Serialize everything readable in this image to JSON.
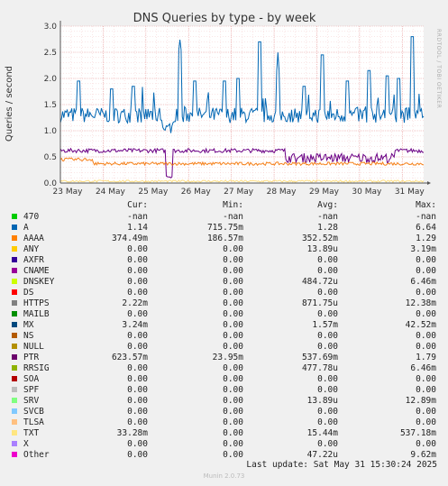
{
  "chart_data": {
    "type": "line",
    "title": "DNS Queries by type - by week",
    "ylabel": "Queries / second",
    "ylim": [
      0,
      3.0
    ],
    "yticks": [
      "0.0",
      "0.5",
      "1.0",
      "1.5",
      "2.0",
      "2.5",
      "3.0"
    ],
    "ytick_values": [
      0,
      0.5,
      1.0,
      1.5,
      2.0,
      2.5,
      3.0
    ],
    "x_categories": [
      "23 May",
      "24 May",
      "25 May",
      "26 May",
      "27 May",
      "28 May",
      "29 May",
      "30 May",
      "31 May"
    ],
    "grid": true,
    "series": [
      {
        "name": "A",
        "color": "#0066b3",
        "baseline": 1.3,
        "noise": 0.15,
        "spikes": [
          [
            0.05,
            1.95
          ],
          [
            0.14,
            1.8
          ],
          [
            0.2,
            1.85
          ],
          [
            0.33,
            2.55
          ],
          [
            0.37,
            1.95
          ],
          [
            0.45,
            1.95
          ],
          [
            0.49,
            2.0
          ],
          [
            0.55,
            2.7
          ],
          [
            0.6,
            2.15
          ],
          [
            0.67,
            1.85
          ],
          [
            0.72,
            2.45
          ],
          [
            0.79,
            1.95
          ],
          [
            0.85,
            2.15
          ],
          [
            0.9,
            2.05
          ],
          [
            0.93,
            2.0
          ],
          [
            0.97,
            2.8
          ]
        ],
        "dip": [
          0.28,
          0.31,
          0.95
        ]
      },
      {
        "name": "PTR",
        "color": "#6a0085",
        "baseline": 0.62,
        "noise": 0.04,
        "drop": [
          0.29,
          0.31,
          0.1
        ],
        "band": [
          0.62,
          0.92,
          0.48
        ]
      },
      {
        "name": "AAAA",
        "color": "#f57f17",
        "baseline": 0.37,
        "noise": 0.03,
        "hump": [
          0.0,
          0.09,
          0.45
        ]
      },
      {
        "name": "TXT",
        "color": "#ffde80",
        "baseline": 0.035,
        "noise": 0.02
      }
    ]
  },
  "legend": {
    "headers": {
      "cur": "Cur:",
      "min": "Min:",
      "avg": "Avg:",
      "max": "Max:"
    },
    "rows": [
      {
        "name": "470",
        "color": "#00cc00",
        "cur": "-nan",
        "min": "-nan",
        "avg": "-nan",
        "max": "-nan"
      },
      {
        "name": "A",
        "color": "#0066b3",
        "cur": "1.14",
        "min": "715.75m",
        "avg": "1.28",
        "max": "6.64"
      },
      {
        "name": "AAAA",
        "color": "#ff8000",
        "cur": "374.49m",
        "min": "186.57m",
        "avg": "352.52m",
        "max": "1.29"
      },
      {
        "name": "ANY",
        "color": "#ffcc00",
        "cur": "0.00",
        "min": "0.00",
        "avg": "13.89u",
        "max": "3.19m"
      },
      {
        "name": "AXFR",
        "color": "#330099",
        "cur": "0.00",
        "min": "0.00",
        "avg": "0.00",
        "max": "0.00"
      },
      {
        "name": "CNAME",
        "color": "#990099",
        "cur": "0.00",
        "min": "0.00",
        "avg": "0.00",
        "max": "0.00"
      },
      {
        "name": "DNSKEY",
        "color": "#ccff00",
        "cur": "0.00",
        "min": "0.00",
        "avg": "484.72u",
        "max": "6.46m"
      },
      {
        "name": "DS",
        "color": "#ff0000",
        "cur": "0.00",
        "min": "0.00",
        "avg": "0.00",
        "max": "0.00"
      },
      {
        "name": "HTTPS",
        "color": "#808080",
        "cur": "2.22m",
        "min": "0.00",
        "avg": "871.75u",
        "max": "12.38m"
      },
      {
        "name": "MAILB",
        "color": "#008f00",
        "cur": "0.00",
        "min": "0.00",
        "avg": "0.00",
        "max": "0.00"
      },
      {
        "name": "MX",
        "color": "#00487d",
        "cur": "3.24m",
        "min": "0.00",
        "avg": "1.57m",
        "max": "42.52m"
      },
      {
        "name": "NS",
        "color": "#b35a00",
        "cur": "0.00",
        "min": "0.00",
        "avg": "0.00",
        "max": "0.00"
      },
      {
        "name": "NULL",
        "color": "#b38f00",
        "cur": "0.00",
        "min": "0.00",
        "avg": "0.00",
        "max": "0.00"
      },
      {
        "name": "PTR",
        "color": "#6b006b",
        "cur": "623.57m",
        "min": "23.95m",
        "avg": "537.69m",
        "max": "1.79"
      },
      {
        "name": "RRSIG",
        "color": "#8fb300",
        "cur": "0.00",
        "min": "0.00",
        "avg": "477.78u",
        "max": "6.46m"
      },
      {
        "name": "SOA",
        "color": "#b30000",
        "cur": "0.00",
        "min": "0.00",
        "avg": "0.00",
        "max": "0.00"
      },
      {
        "name": "SPF",
        "color": "#bebebe",
        "cur": "0.00",
        "min": "0.00",
        "avg": "0.00",
        "max": "0.00"
      },
      {
        "name": "SRV",
        "color": "#80ff80",
        "cur": "0.00",
        "min": "0.00",
        "avg": "13.89u",
        "max": "12.89m"
      },
      {
        "name": "SVCB",
        "color": "#80c9ff",
        "cur": "0.00",
        "min": "0.00",
        "avg": "0.00",
        "max": "0.00"
      },
      {
        "name": "TLSA",
        "color": "#ffc080",
        "cur": "0.00",
        "min": "0.00",
        "avg": "0.00",
        "max": "0.00"
      },
      {
        "name": "TXT",
        "color": "#ffe680",
        "cur": "33.28m",
        "min": "0.00",
        "avg": "15.44m",
        "max": "537.18m"
      },
      {
        "name": "X",
        "color": "#aa80ff",
        "cur": "0.00",
        "min": "0.00",
        "avg": "0.00",
        "max": "0.00"
      },
      {
        "name": "Other",
        "color": "#ee00cc",
        "cur": "0.00",
        "min": "0.00",
        "avg": "47.22u",
        "max": "9.62m"
      }
    ]
  },
  "last_update": "Last update: Sat May 31 15:30:24 2025",
  "side_text": "RRDTOOL / TOBI OETIKER",
  "footer": "Munin 2.0.73"
}
